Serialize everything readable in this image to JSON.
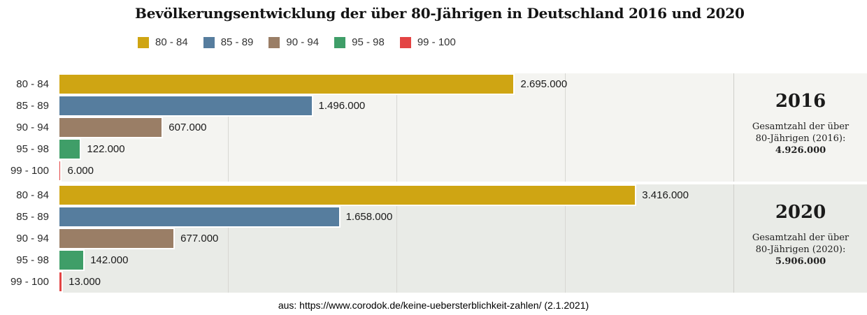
{
  "title": "Bevölkerungsentwicklung der über 80-Jährigen in Deutschland 2016 und 2020",
  "caption": "aus: https://www.corodok.de/keine-uebersterblichkeit-zahlen/ (2.1.2021)",
  "chart_data": {
    "type": "bar",
    "orientation": "horizontal",
    "categories": [
      "80 - 84",
      "85 - 89",
      "90 - 94",
      "95 - 98",
      "99 - 100"
    ],
    "colors": [
      "#cfa513",
      "#567d9e",
      "#9a7e66",
      "#3f9e68",
      "#e34444"
    ],
    "xlim": [
      0,
      4800000
    ],
    "x_gridlines": [
      1000000,
      2000000,
      3000000
    ],
    "grid": "on",
    "legend_position": "top-left",
    "groups": [
      {
        "year": "2016",
        "values": [
          2695000,
          1496000,
          607000,
          122000,
          6000
        ],
        "value_labels": [
          "2.695.000",
          "1.496.000",
          "607.000",
          "122.000",
          "6.000"
        ],
        "summary": [
          "Gesamtzahl der über",
          "80-Jährigen (2016):"
        ],
        "total": "4.926.000",
        "background": "#f4f4f1"
      },
      {
        "year": "2020",
        "values": [
          3416000,
          1658000,
          677000,
          142000,
          13000
        ],
        "value_labels": [
          "3.416.000",
          "1.658.000",
          "677.000",
          "142.000",
          "13.000"
        ],
        "summary": [
          "Gesamtzahl der über",
          "80-Jährigen (2020):"
        ],
        "total": "5.906.000",
        "background": "#e9ebe7"
      }
    ]
  }
}
